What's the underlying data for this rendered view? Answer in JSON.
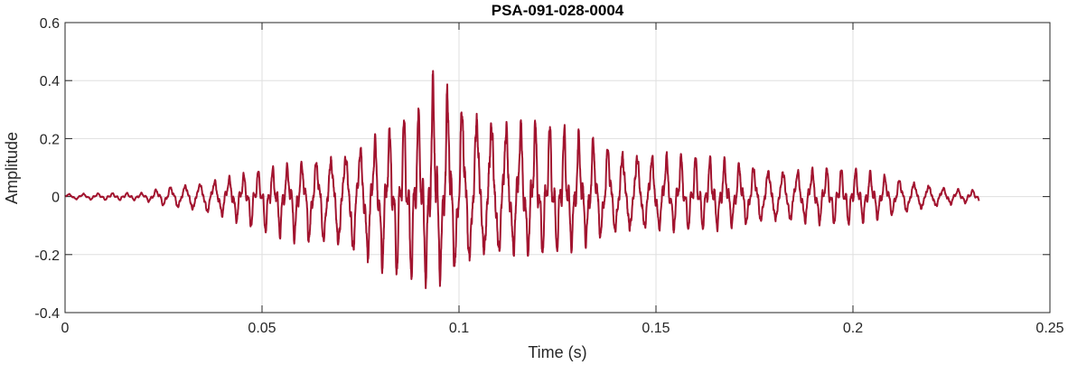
{
  "chart_data": {
    "type": "line",
    "title": "PSA-091-028-0004",
    "xlabel": "Time (s)",
    "ylabel": "Amplitude",
    "xlim": [
      0,
      0.25
    ],
    "ylim": [
      -0.4,
      0.6
    ],
    "xticks": [
      0,
      0.05,
      0.1,
      0.15,
      0.2,
      0.25
    ],
    "xtick_labels": [
      "0",
      "0.05",
      "0.1",
      "0.15",
      "0.2",
      "0.25"
    ],
    "yticks": [
      -0.4,
      -0.2,
      0,
      0.2,
      0.4,
      0.6
    ],
    "ytick_labels": [
      "-0.4",
      "-0.2",
      "0",
      "0.2",
      "0.4",
      "0.6"
    ],
    "grid": true,
    "box": true,
    "series": [
      {
        "color": "#a2142f",
        "x_start": 0,
        "x_end": 0.232,
        "cycle_period": 0.0037,
        "envelope": [
          {
            "t": 0.0,
            "pos": 0.012,
            "neg": -0.012
          },
          {
            "t": 0.02,
            "pos": 0.015,
            "neg": -0.015
          },
          {
            "t": 0.025,
            "pos": 0.04,
            "neg": -0.04
          },
          {
            "t": 0.04,
            "pos": 0.08,
            "neg": -0.09
          },
          {
            "t": 0.055,
            "pos": 0.12,
            "neg": -0.16
          },
          {
            "t": 0.07,
            "pos": 0.2,
            "neg": -0.25
          },
          {
            "t": 0.08,
            "pos": 0.26,
            "neg": -0.3
          },
          {
            "t": 0.09,
            "pos": 0.35,
            "neg": -0.33
          },
          {
            "t": 0.094,
            "pos": 0.49,
            "neg": -0.35
          },
          {
            "t": 0.1,
            "pos": 0.42,
            "neg": -0.32
          },
          {
            "t": 0.11,
            "pos": 0.36,
            "neg": -0.28
          },
          {
            "t": 0.125,
            "pos": 0.28,
            "neg": -0.22
          },
          {
            "t": 0.14,
            "pos": 0.22,
            "neg": -0.17
          },
          {
            "t": 0.16,
            "pos": 0.16,
            "neg": -0.13
          },
          {
            "t": 0.18,
            "pos": 0.13,
            "neg": -0.12
          },
          {
            "t": 0.2,
            "pos": 0.11,
            "neg": -0.11
          },
          {
            "t": 0.215,
            "pos": 0.07,
            "neg": -0.07
          },
          {
            "t": 0.225,
            "pos": 0.035,
            "neg": -0.035
          },
          {
            "t": 0.232,
            "pos": 0.025,
            "neg": -0.02
          }
        ]
      }
    ]
  }
}
